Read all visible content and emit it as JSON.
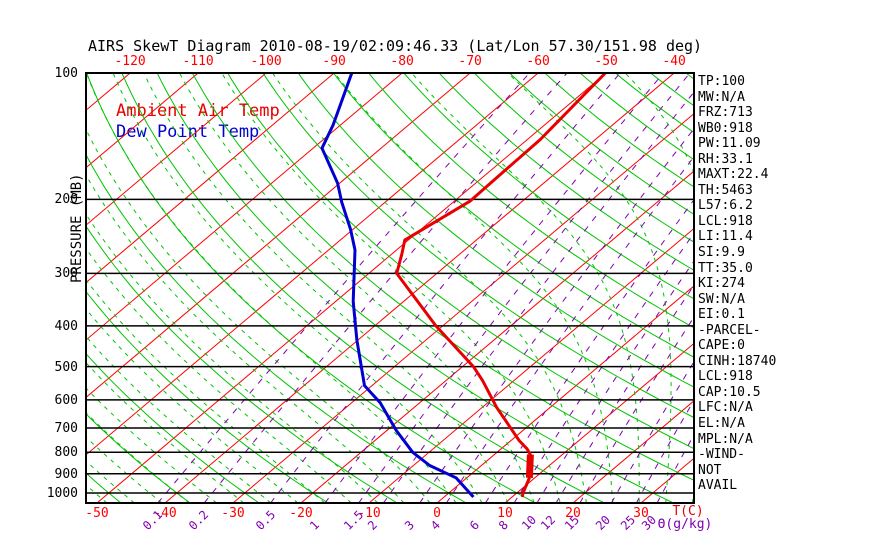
{
  "title": "AIRS SkewT Diagram 2010-08-19/02:09:46.33 (Lat/Lon 57.30/151.98 deg)",
  "legend": {
    "temp": "Ambient Air Temp",
    "dewpoint": "Dew Point Temp"
  },
  "axes": {
    "pressure_label": "PRESSURE (MB)",
    "pressure_ticks": [
      100,
      200,
      300,
      400,
      500,
      600,
      700,
      800,
      900,
      1000
    ],
    "temp_axis_label": "T(C)",
    "mixing_axis_label": "Θ(g/kg)",
    "top_temp_ticks": [
      -120,
      -110,
      -100,
      -90,
      -80,
      -70,
      -60,
      -50,
      -40
    ],
    "bottom_temp_ticks": [
      -50,
      -40,
      -30,
      -20,
      -10,
      0,
      10,
      20,
      30
    ],
    "mixing_ratio_ticks": [
      0.1,
      0.2,
      0.5,
      1,
      1.5,
      2,
      3,
      4,
      6,
      8,
      10,
      12,
      15,
      20,
      25,
      30
    ]
  },
  "stats": [
    "TP:100",
    "MW:N/A",
    "FRZ:713",
    "WB0:918",
    "PW:11.09",
    "RH:33.1",
    "MAXT:22.4",
    "TH:5463",
    "L57:6.2",
    "LCL:918",
    "LI:11.4",
    "SI:9.9",
    "TT:35.0",
    "KI:274",
    "SW:N/A",
    "EI:0.1",
    "-PARCEL-",
    "CAPE:0",
    "CINH:18740",
    "LCL:918",
    "CAP:10.5",
    "LFC:N/A",
    "EL:N/A",
    "MPL:N/A",
    "-WIND-",
    "NOT",
    "AVAIL"
  ],
  "colors": {
    "isotherm": "#ff0000",
    "dry_adiabat": "#00c400",
    "moist_adiabat": "#00c400",
    "mixing_ratio": "#8000b0",
    "pressure_line": "#000000",
    "temp_curve": "#e80000",
    "dew_curve": "#0000d0",
    "title_text": "#000000"
  },
  "chart_data": {
    "type": "line",
    "title": "AIRS SkewT Diagram 2010-08-19/02:09:46.33 (Lat/Lon 57.30/151.98 deg)",
    "xlabel": "T(C)",
    "ylabel": "PRESSURE (MB)",
    "y_scale": "log",
    "y_range_mb": [
      100,
      1056
    ],
    "x_top_tick_range": [
      -120,
      -40
    ],
    "x_bottom_tick_range": [
      -50,
      30
    ],
    "legend_position": "top-left",
    "series": [
      {
        "name": "Ambient Air Temp",
        "color": "#e80000",
        "points_p_t": [
          [
            1022,
            11.5
          ],
          [
            1000,
            10.9
          ],
          [
            920,
            9.2
          ],
          [
            860,
            7.2
          ],
          [
            810,
            5.3
          ],
          [
            785,
            3.8
          ],
          [
            750,
            1.2
          ],
          [
            625,
            -7.9
          ],
          [
            540,
            -14.6
          ],
          [
            500,
            -18.4
          ],
          [
            400,
            -31.0
          ],
          [
            300,
            -45.9
          ],
          [
            270,
            -48.5
          ],
          [
            250,
            -50.5
          ],
          [
            202,
            -47.7
          ],
          [
            144,
            -48.1
          ],
          [
            100,
            -50.1
          ]
        ]
      },
      {
        "name": "Dew Point Temp",
        "color": "#0000d0",
        "points_p_t": [
          [
            1022,
            4.3
          ],
          [
            920,
            -1.6
          ],
          [
            860,
            -7.6
          ],
          [
            800,
            -12.4
          ],
          [
            710,
            -18.6
          ],
          [
            610,
            -25.8
          ],
          [
            555,
            -31.1
          ],
          [
            433,
            -40.1
          ],
          [
            350,
            -47.4
          ],
          [
            264,
            -56.1
          ],
          [
            236,
            -60.3
          ],
          [
            203,
            -66.4
          ],
          [
            183,
            -70.3
          ],
          [
            151,
            -78.7
          ],
          [
            133,
            -81.1
          ],
          [
            100,
            -87.4
          ]
        ]
      }
    ],
    "temp_thick_segment": {
      "p_from": 920,
      "t_from": 9.2,
      "p_to": 810,
      "t_to": 5.3
    },
    "grid": {
      "isotherm_step_c": 10,
      "isotherm_range_c": [
        -160,
        40
      ],
      "dry_adiabat_theta_range_c": [
        -50,
        190
      ],
      "dry_adiabat_step_c": 10,
      "moist_adiabat_thetaw_range_c": [
        -56,
        40
      ],
      "moist_adiabat_step_c": 4,
      "mixing_ratio_lines_gkg": [
        0.1,
        0.2,
        0.5,
        1,
        1.5,
        2,
        3,
        4,
        6,
        8,
        10,
        12,
        15,
        20,
        25,
        30
      ]
    }
  }
}
